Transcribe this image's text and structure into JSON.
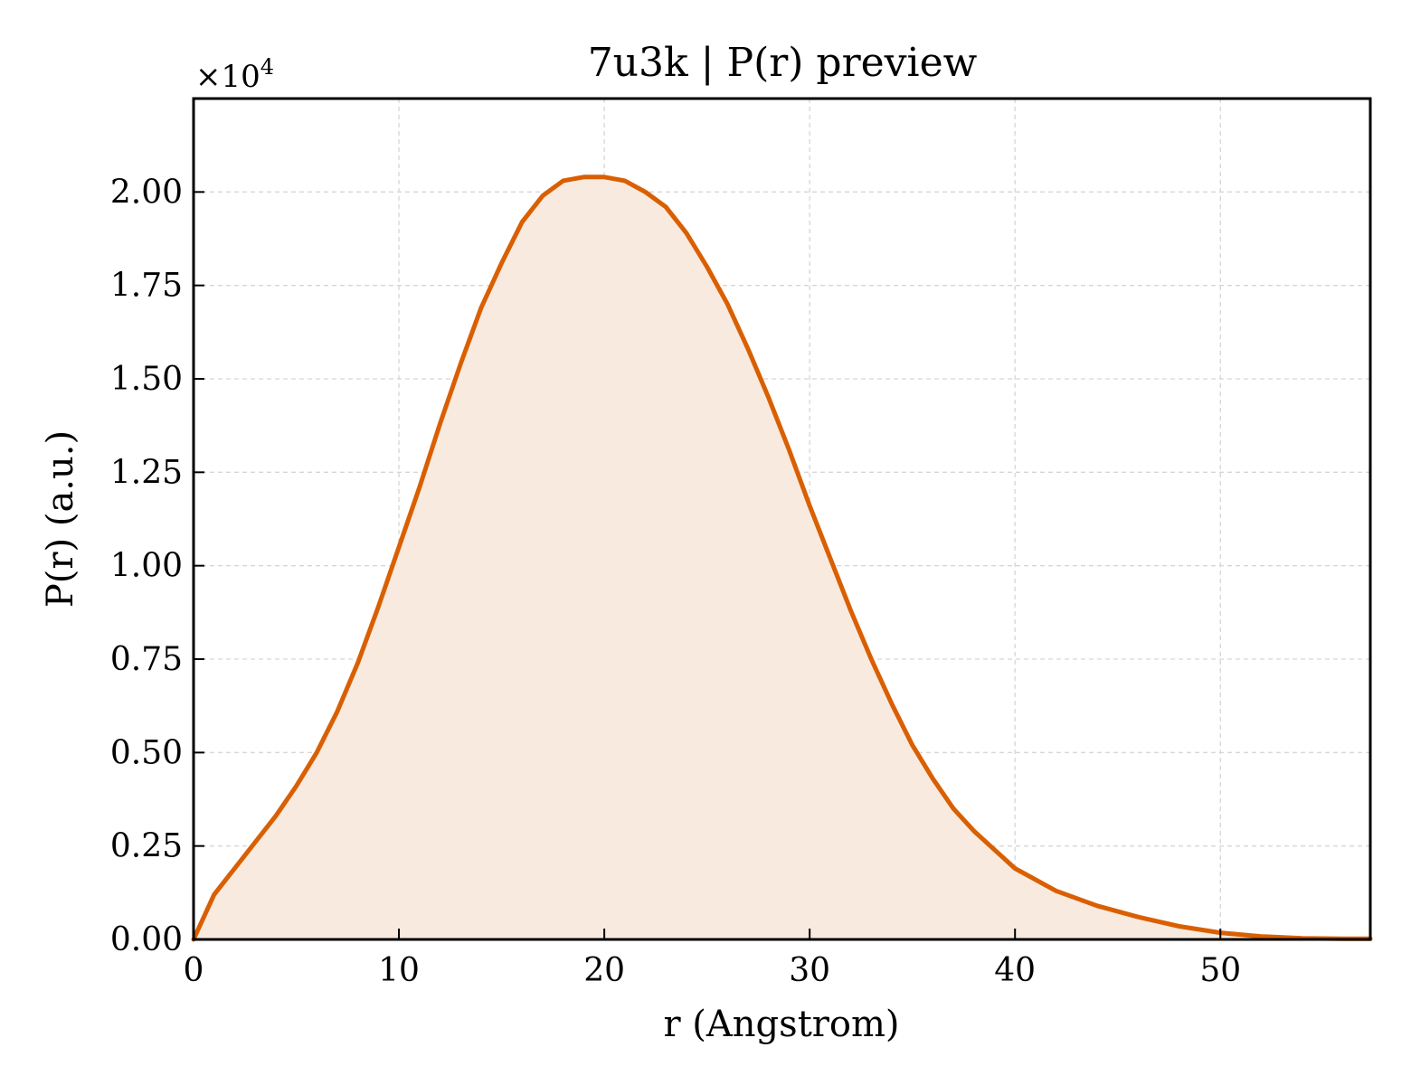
{
  "chart_data": {
    "type": "area",
    "title": "7u3k | P(r) preview",
    "xlabel": "r (Angstrom)",
    "ylabel": "P(r) (a.u.)",
    "y_multiplier": "×10",
    "y_multiplier_exp": "4",
    "xlim": [
      0,
      57.3
    ],
    "ylim": [
      0,
      2.25
    ],
    "grid": true,
    "x_ticks": [
      0,
      10,
      20,
      30,
      40,
      50
    ],
    "x_tick_labels": [
      "0",
      "10",
      "20",
      "30",
      "40",
      "50"
    ],
    "y_ticks": [
      0,
      0.25,
      0.5,
      0.75,
      1.0,
      1.25,
      1.5,
      1.75,
      2.0
    ],
    "y_tick_labels": [
      "0.00",
      "0.25",
      "0.50",
      "0.75",
      "1.00",
      "1.25",
      "1.50",
      "1.75",
      "2.00"
    ],
    "series": [
      {
        "color": "#d95f02",
        "fill_color": "#f8eadf",
        "x": [
          0,
          1,
          2,
          3,
          4,
          5,
          6,
          7,
          8,
          9,
          10,
          11,
          12,
          13,
          14,
          15,
          16,
          17,
          18,
          19,
          20,
          21,
          22,
          23,
          24,
          25,
          26,
          27,
          28,
          29,
          30,
          31,
          32,
          33,
          34,
          35,
          36,
          37,
          38,
          39,
          40,
          42,
          44,
          46,
          48,
          50,
          52,
          54,
          56,
          57.3
        ],
        "y": [
          0,
          0.12,
          0.19,
          0.26,
          0.33,
          0.41,
          0.5,
          0.61,
          0.74,
          0.89,
          1.05,
          1.21,
          1.38,
          1.54,
          1.69,
          1.81,
          1.92,
          1.99,
          2.03,
          2.04,
          2.04,
          2.03,
          2.0,
          1.96,
          1.89,
          1.8,
          1.7,
          1.58,
          1.45,
          1.31,
          1.16,
          1.02,
          0.88,
          0.75,
          0.63,
          0.52,
          0.43,
          0.35,
          0.29,
          0.24,
          0.19,
          0.13,
          0.09,
          0.06,
          0.035,
          0.018,
          0.008,
          0.003,
          0.002,
          0.002
        ]
      }
    ]
  }
}
